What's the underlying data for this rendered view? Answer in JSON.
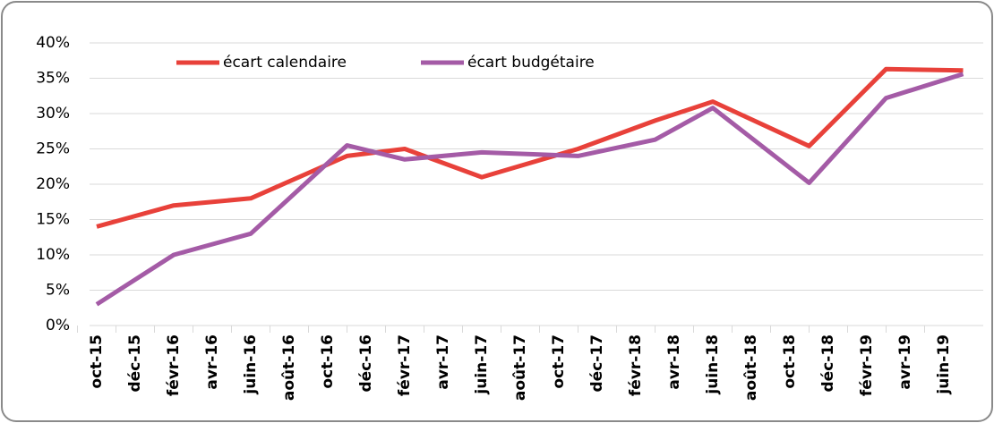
{
  "chart_data": {
    "type": "line",
    "x": [
      "2015-10",
      "2016-02",
      "2016-06",
      "2016-11",
      "2017-02",
      "2017-06",
      "2017-11",
      "2018-03",
      "2018-06",
      "2018-11",
      "2019-03",
      "2019-07"
    ],
    "series": [
      {
        "name": "écart calendaire",
        "color": "#e8413a",
        "values": [
          14,
          17,
          18,
          24,
          25,
          21,
          25,
          29,
          31.7,
          25.4,
          36.3,
          36.1
        ]
      },
      {
        "name": "écart budgétaire",
        "color": "#a45ba6",
        "values": [
          3,
          10,
          13,
          25.5,
          23.5,
          24.5,
          24,
          26.3,
          30.8,
          20.2,
          32.2,
          35.6
        ]
      }
    ],
    "xlim": [
      "2015-10",
      "2019-07"
    ],
    "xticks": [
      {
        "value": "2015-10",
        "label": "oct-15"
      },
      {
        "value": "2015-12",
        "label": "déc-15"
      },
      {
        "value": "2016-02",
        "label": "févr-16"
      },
      {
        "value": "2016-04",
        "label": "avr-16"
      },
      {
        "value": "2016-06",
        "label": "juin-16"
      },
      {
        "value": "2016-08",
        "label": "août-16"
      },
      {
        "value": "2016-10",
        "label": "oct-16"
      },
      {
        "value": "2016-12",
        "label": "déc-16"
      },
      {
        "value": "2017-02",
        "label": "févr-17"
      },
      {
        "value": "2017-04",
        "label": "avr-17"
      },
      {
        "value": "2017-06",
        "label": "juin-17"
      },
      {
        "value": "2017-08",
        "label": "août-17"
      },
      {
        "value": "2017-10",
        "label": "oct-17"
      },
      {
        "value": "2017-12",
        "label": "déc-17"
      },
      {
        "value": "2018-02",
        "label": "févr-18"
      },
      {
        "value": "2018-04",
        "label": "avr-18"
      },
      {
        "value": "2018-06",
        "label": "juin-18"
      },
      {
        "value": "2018-08",
        "label": "août-18"
      },
      {
        "value": "2018-10",
        "label": "oct-18"
      },
      {
        "value": "2018-12",
        "label": "déc-18"
      },
      {
        "value": "2019-02",
        "label": "févr-19"
      },
      {
        "value": "2019-04",
        "label": "avr-19"
      },
      {
        "value": "2019-06",
        "label": "juin-19"
      }
    ],
    "ylim": [
      0,
      40
    ],
    "yticks": [
      {
        "value": 0,
        "label": "0%"
      },
      {
        "value": 5,
        "label": "5%"
      },
      {
        "value": 10,
        "label": "10%"
      },
      {
        "value": 15,
        "label": "15%"
      },
      {
        "value": 20,
        "label": "20%"
      },
      {
        "value": 25,
        "label": "25%"
      },
      {
        "value": 30,
        "label": "30%"
      },
      {
        "value": 35,
        "label": "35%"
      },
      {
        "value": 40,
        "label": "40%"
      }
    ],
    "grid": true,
    "legend": "top"
  }
}
